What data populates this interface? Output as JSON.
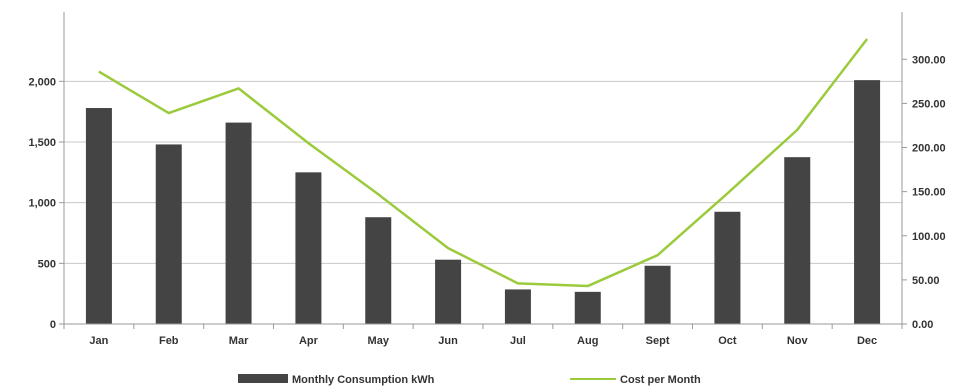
{
  "chart_data": {
    "type": "bar",
    "categories": [
      "Jan",
      "Feb",
      "Mar",
      "Apr",
      "May",
      "Jun",
      "Jul",
      "Aug",
      "Sept",
      "Oct",
      "Nov",
      "Dec"
    ],
    "series": [
      {
        "name": "Monthly Consumption kWh",
        "type": "bar",
        "axis": "left",
        "color": "#444444",
        "values": [
          1780,
          1480,
          1660,
          1250,
          880,
          530,
          285,
          265,
          480,
          925,
          1375,
          2010
        ]
      },
      {
        "name": "Cost per Month",
        "type": "line",
        "axis": "right",
        "color": "#9bcb3c",
        "values": [
          286,
          239,
          267,
          205,
          147,
          86,
          46,
          43,
          78,
          148,
          220,
          323
        ]
      }
    ],
    "y_left": {
      "lim": [
        0,
        2400
      ],
      "ticks": [
        "0",
        "500",
        "1,000",
        "1,500",
        "2,000"
      ],
      "tick_values": [
        0,
        500,
        1000,
        1500,
        2000
      ]
    },
    "y_right": {
      "lim": [
        0,
        330
      ],
      "ticks": [
        "0.00",
        "50.00",
        "100.00",
        "150.00",
        "200.00",
        "250.00",
        "300.00"
      ],
      "tick_values": [
        0,
        50,
        100,
        150,
        200,
        250,
        300
      ]
    },
    "grid": true,
    "legend_position": "bottom"
  }
}
